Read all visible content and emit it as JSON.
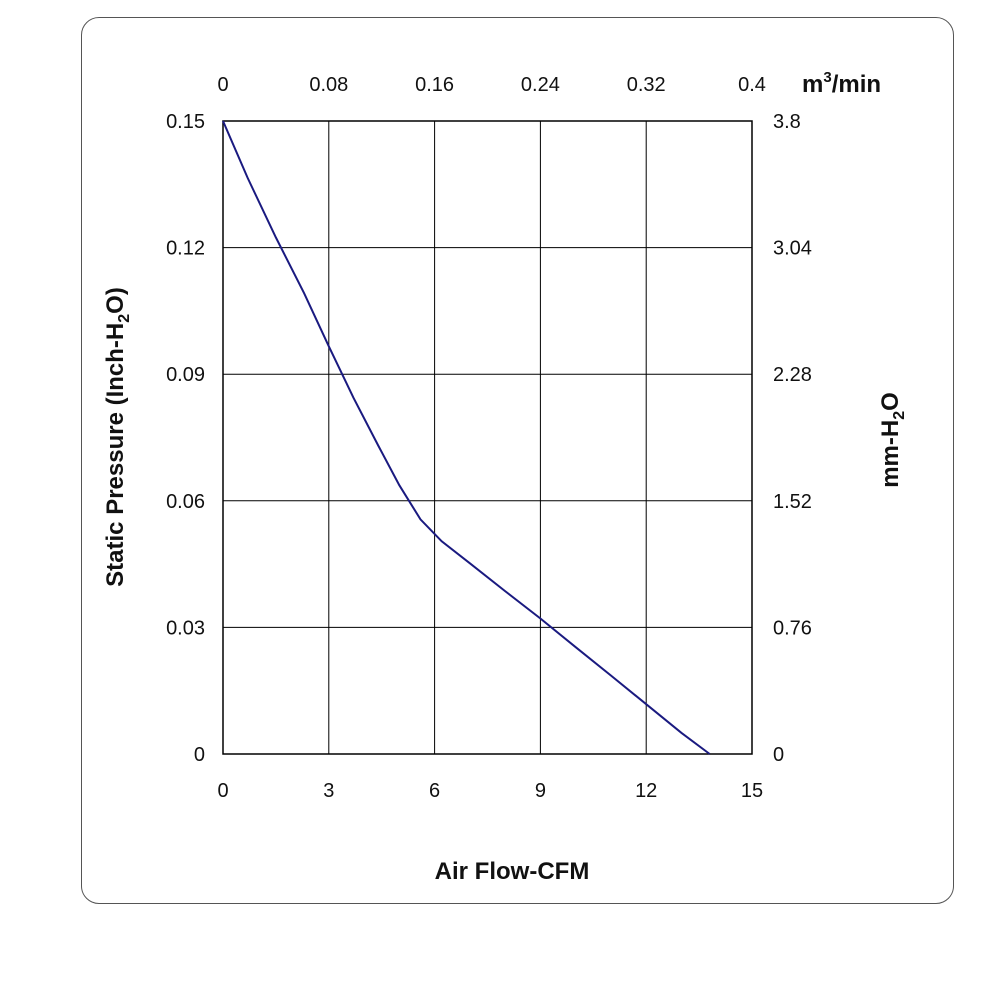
{
  "chart_data": {
    "type": "line",
    "title": "",
    "xlabel": "Air Flow-CFM",
    "ylabel": "Static Pressure (Inch-H2O)",
    "ylabel_parts": [
      "Static Pressure (Inch-H",
      "2",
      "O)"
    ],
    "y2label_parts": [
      "mm-H",
      "2",
      "O"
    ],
    "x2label_parts": [
      "m",
      "3",
      "/min"
    ],
    "xlim": [
      0,
      15
    ],
    "ylim": [
      0,
      0.15
    ],
    "x_ticks": [
      "0",
      "3",
      "6",
      "9",
      "12",
      "15"
    ],
    "y_ticks": [
      "0",
      "0.03",
      "0.06",
      "0.09",
      "0.12",
      "0.15"
    ],
    "x2_ticks": [
      "0",
      "0.08",
      "0.16",
      "0.24",
      "0.32",
      "0.4"
    ],
    "y2_ticks": [
      "0",
      "0.76",
      "1.52",
      "2.28",
      "3.04",
      "3.8"
    ],
    "grid": true,
    "line_color": "#1a1a80",
    "series": [
      {
        "x": [
          0,
          0.7,
          1.5,
          2.3,
          3.0,
          3.7,
          4.4,
          5.0,
          5.6,
          6.2,
          7.0,
          8.0,
          9.0,
          10.0,
          11.0,
          12.0,
          13.0,
          13.8
        ],
        "y": [
          0.15,
          0.1365,
          0.1224,
          0.1092,
          0.0966,
          0.0844,
          0.0731,
          0.0637,
          0.0556,
          0.0504,
          0.0452,
          0.0386,
          0.0321,
          0.0253,
          0.0186,
          0.0118,
          0.005,
          0.0
        ]
      }
    ]
  }
}
